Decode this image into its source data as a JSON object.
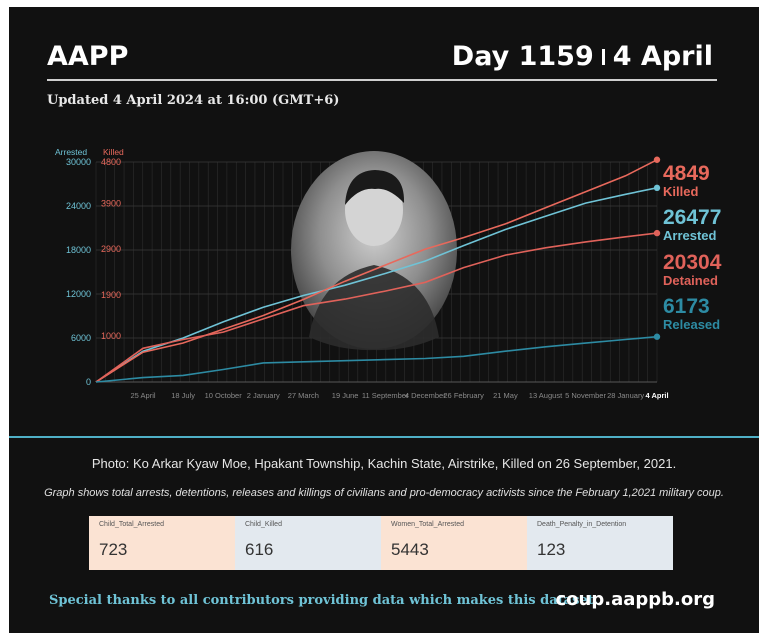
{
  "header": {
    "title": "AAPP",
    "day_label": "Day 1159",
    "date_label": "4 April"
  },
  "updated": "Updated 4 April 2024 at 16:00 (GMT+6)",
  "colors": {
    "arrested": "#6fc3d6",
    "killed": "#e8695c",
    "detained": "#e0625a",
    "released": "#2d8ba3",
    "separator": "#4fb0c6"
  },
  "chart_data": {
    "type": "line",
    "left_axis_label": "Arrested",
    "right_axis_label": "Killed",
    "left_ticks": [
      "0",
      "6000",
      "12000",
      "18000",
      "24000",
      "30000"
    ],
    "right_ticks": [
      "1000",
      "1900",
      "2900",
      "3900",
      "4800"
    ],
    "left_ylim": [
      0,
      30000
    ],
    "right_ylim": [
      0,
      4800
    ],
    "x_ticks": [
      "25 April",
      "18 July",
      "10 October",
      "2 January",
      "27 March",
      "19 June",
      "11 September",
      "4 December",
      "26 February",
      "21 May",
      "13 August",
      "5 November",
      "28 January",
      "4 April"
    ],
    "x_years": [
      2021.04,
      2021.31,
      2021.54,
      2021.77,
      2022.0,
      2022.23,
      2022.47,
      2022.7,
      2022.93,
      2023.15,
      2023.39,
      2023.62,
      2023.85,
      2024.08,
      2024.26
    ],
    "series": [
      {
        "name": "Arrested",
        "axis": "left",
        "final": "26477",
        "values": [
          0,
          4200,
          6000,
          8200,
          10200,
          11800,
          13200,
          14800,
          16500,
          18600,
          20800,
          22600,
          24400,
          25600,
          26477
        ]
      },
      {
        "name": "Killed",
        "axis": "right",
        "final": "4849",
        "values": [
          0,
          650,
          850,
          1150,
          1450,
          1800,
          2200,
          2550,
          2900,
          3150,
          3450,
          3800,
          4150,
          4500,
          4849
        ]
      },
      {
        "name": "Detained",
        "axis": "left",
        "final": "20304",
        "values": [
          0,
          4600,
          5800,
          6800,
          8600,
          10400,
          11300,
          12400,
          13600,
          15600,
          17300,
          18300,
          19100,
          19800,
          20304
        ]
      },
      {
        "name": "Released",
        "axis": "left",
        "final": "6173",
        "values": [
          0,
          600,
          900,
          1700,
          2600,
          2750,
          2900,
          3050,
          3200,
          3500,
          4200,
          4800,
          5300,
          5800,
          6173
        ]
      }
    ]
  },
  "photo": {
    "caption": "Photo: Ko Arkar Kyaw Moe, Hpakant Township, Kachin State, Airstrike, Killed on 26 September, 2021."
  },
  "description": "Graph shows total arrests, detentions, releases and killings of civilians and pro-democracy activists since the February 1,2021 military coup.",
  "stats": [
    {
      "label": "Child_Total_Arrested",
      "value": "723",
      "bg": "#fbe3d3"
    },
    {
      "label": "Child_Killed",
      "value": "616",
      "bg": "#e3e9ef"
    },
    {
      "label": "Women_Total_Arrested",
      "value": "5443",
      "bg": "#fbe3d3"
    },
    {
      "label": "Death_Penalty_in_Detention",
      "value": "123",
      "bg": "#e3e9ef"
    }
  ],
  "footer": {
    "thanks": "Special thanks to all contributors providing data which makes this dataset.",
    "url": "coup.aappb.org"
  }
}
